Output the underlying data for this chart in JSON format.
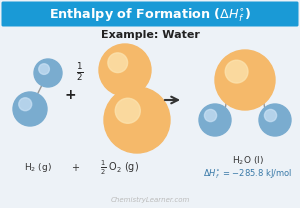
{
  "title_display": "Enthalpy of Formation ($\\Delta H_f^{\\circ}$)",
  "subtitle": "Example: Water",
  "bg_color": "#edf2f7",
  "title_bg": "#1a9ad6",
  "title_fg": "#ffffff",
  "blue_color": "#7aaccf",
  "orange_color": "#f5b96a",
  "blue_highlight": "#c8e0f4",
  "orange_highlight": "#fce4b0",
  "watermark": "ChemistryLearner.com",
  "equation_color": "#3a7aa8",
  "arrow_color": "#333333",
  "bond_color": "#999999",
  "h2_label": "H$_2$ (g)",
  "plus_sign": "+",
  "half_o2_label": "$\\frac{1}{2}$ O$_2$ (g)",
  "h2o_label": "H$_2$O (l)",
  "delta_h": "$\\Delta H_f^{\\circ}$ = −285.8 kJ/mol",
  "half_fraction": "$\\frac{1}{2}$"
}
